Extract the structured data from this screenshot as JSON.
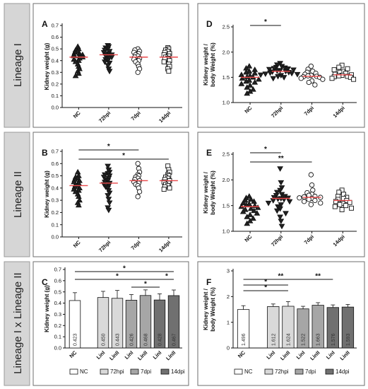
{
  "rows": [
    {
      "label": "Lineage I"
    },
    {
      "label": "Lineage II"
    },
    {
      "label": "Lineage I x Lineage II"
    }
  ],
  "colors": {
    "median": "#e8484a",
    "nc": "#ffffff",
    "72hpi": "#d9d9d9",
    "7dpi": "#a6a6a6",
    "14dpi": "#707070"
  },
  "chart_data": [
    {
      "panel": "A",
      "type": "scatter",
      "ylabel": "Kidney weight (g)",
      "ylim": [
        0.0,
        0.7
      ],
      "yticks": [
        "0.0",
        "0.1",
        "0.2",
        "0.3",
        "0.4",
        "0.5",
        "0.6",
        "0.7"
      ],
      "categories": [
        "NC",
        "72hpi",
        "7dpi",
        "14dpi"
      ],
      "markers": [
        "triangle-up",
        "triangle-down",
        "circle",
        "square"
      ],
      "groups": [
        {
          "name": "NC",
          "median": 0.43,
          "values": [
            0.52,
            0.5,
            0.49,
            0.48,
            0.47,
            0.46,
            0.45,
            0.45,
            0.44,
            0.44,
            0.43,
            0.42,
            0.41,
            0.4,
            0.39,
            0.37,
            0.35,
            0.33,
            0.31,
            0.29,
            0.27
          ]
        },
        {
          "name": "72hpi",
          "median": 0.45,
          "values": [
            0.53,
            0.52,
            0.51,
            0.5,
            0.49,
            0.48,
            0.47,
            0.46,
            0.45,
            0.45,
            0.44,
            0.44,
            0.43,
            0.42,
            0.41,
            0.4,
            0.39,
            0.38,
            0.36,
            0.33,
            0.31
          ]
        },
        {
          "name": "7dpi",
          "median": 0.43,
          "values": [
            0.5,
            0.49,
            0.48,
            0.47,
            0.46,
            0.45,
            0.44,
            0.43,
            0.42,
            0.41,
            0.4,
            0.39,
            0.37,
            0.35,
            0.33,
            0.3
          ]
        },
        {
          "name": "14dpi",
          "median": 0.43,
          "values": [
            0.51,
            0.5,
            0.49,
            0.48,
            0.47,
            0.46,
            0.45,
            0.44,
            0.43,
            0.42,
            0.41,
            0.4,
            0.39,
            0.37,
            0.35,
            0.33,
            0.31
          ]
        }
      ],
      "sig": []
    },
    {
      "panel": "D",
      "type": "scatter",
      "ylabel": "Kidney weight / body Weight (%)",
      "ylim": [
        1.0,
        2.5
      ],
      "yticks": [
        "1.0",
        "1.5",
        "2.0",
        "2.5"
      ],
      "categories": [
        "NC",
        "72hpi",
        "7dpi",
        "14dpi"
      ],
      "markers": [
        "triangle-up",
        "triangle-down",
        "circle",
        "square"
      ],
      "groups": [
        {
          "name": "NC",
          "median": 1.5,
          "values": [
            1.72,
            1.68,
            1.65,
            1.62,
            1.6,
            1.58,
            1.55,
            1.53,
            1.51,
            1.5,
            1.48,
            1.46,
            1.44,
            1.42,
            1.4,
            1.37,
            1.34,
            1.3,
            1.26,
            1.22,
            1.18
          ]
        },
        {
          "name": "72hpi",
          "median": 1.62,
          "values": [
            1.78,
            1.75,
            1.72,
            1.7,
            1.69,
            1.68,
            1.67,
            1.66,
            1.65,
            1.64,
            1.63,
            1.62,
            1.61,
            1.6,
            1.59,
            1.58,
            1.57,
            1.56,
            1.55,
            1.54,
            1.52,
            1.5,
            1.48
          ]
        },
        {
          "name": "7dpi",
          "median": 1.52,
          "values": [
            1.72,
            1.66,
            1.62,
            1.6,
            1.58,
            1.56,
            1.54,
            1.53,
            1.52,
            1.51,
            1.5,
            1.48,
            1.46,
            1.43,
            1.4,
            1.35
          ]
        },
        {
          "name": "14dpi",
          "median": 1.55,
          "values": [
            1.74,
            1.7,
            1.67,
            1.65,
            1.62,
            1.6,
            1.58,
            1.56,
            1.55,
            1.54,
            1.53,
            1.52,
            1.51,
            1.5,
            1.48,
            1.46
          ]
        }
      ],
      "sig": [
        {
          "from": 0,
          "to": 1,
          "label": "*"
        }
      ]
    },
    {
      "panel": "B",
      "type": "scatter",
      "ylabel": "Kidney weight (g)",
      "ylim": [
        0.0,
        0.7
      ],
      "yticks": [
        "0.0",
        "0.1",
        "0.2",
        "0.3",
        "0.4",
        "0.5",
        "0.6",
        "0.7"
      ],
      "categories": [
        "NC",
        "72hpi",
        "7dpi",
        "14dpi"
      ],
      "markers": [
        "triangle-up",
        "triangle-down",
        "circle",
        "square"
      ],
      "groups": [
        {
          "name": "NC",
          "median": 0.42,
          "values": [
            0.53,
            0.5,
            0.49,
            0.48,
            0.47,
            0.46,
            0.45,
            0.44,
            0.43,
            0.42,
            0.41,
            0.4,
            0.39,
            0.38,
            0.37,
            0.35,
            0.33,
            0.3,
            0.28,
            0.26
          ]
        },
        {
          "name": "72hpi",
          "median": 0.44,
          "values": [
            0.58,
            0.55,
            0.53,
            0.52,
            0.51,
            0.5,
            0.49,
            0.48,
            0.47,
            0.46,
            0.45,
            0.44,
            0.43,
            0.42,
            0.41,
            0.4,
            0.38,
            0.36,
            0.34,
            0.31,
            0.28,
            0.24,
            0.22
          ]
        },
        {
          "name": "7dpi",
          "median": 0.46,
          "values": [
            0.6,
            0.56,
            0.53,
            0.51,
            0.5,
            0.49,
            0.48,
            0.47,
            0.46,
            0.45,
            0.44,
            0.43,
            0.42,
            0.4,
            0.37,
            0.33
          ]
        },
        {
          "name": "14dpi",
          "median": 0.46,
          "values": [
            0.58,
            0.55,
            0.53,
            0.51,
            0.5,
            0.49,
            0.48,
            0.47,
            0.46,
            0.45,
            0.44,
            0.43,
            0.42,
            0.41,
            0.4,
            0.39
          ]
        }
      ],
      "sig": [
        {
          "from": 0,
          "to": 2,
          "label": "*"
        },
        {
          "from": 0,
          "to": 3,
          "label": "*"
        }
      ]
    },
    {
      "panel": "E",
      "type": "scatter",
      "ylabel": "Kidney weight / body Weight (%)",
      "ylim": [
        1.0,
        2.5
      ],
      "yticks": [
        "1.0",
        "1.5",
        "2.0",
        "2.5"
      ],
      "categories": [
        "NC",
        "72hpi",
        "7dpi",
        "14dpi"
      ],
      "markers": [
        "triangle-up",
        "triangle-down",
        "circle",
        "square"
      ],
      "groups": [
        {
          "name": "NC",
          "median": 1.48,
          "values": [
            1.68,
            1.65,
            1.62,
            1.6,
            1.58,
            1.55,
            1.53,
            1.51,
            1.5,
            1.48,
            1.46,
            1.44,
            1.42,
            1.4,
            1.38,
            1.35,
            1.32,
            1.28,
            1.25,
            1.2,
            1.15
          ]
        },
        {
          "name": "72hpi",
          "median": 1.64,
          "values": [
            2.22,
            1.95,
            1.85,
            1.8,
            1.76,
            1.72,
            1.7,
            1.68,
            1.66,
            1.65,
            1.64,
            1.63,
            1.62,
            1.6,
            1.58,
            1.55,
            1.52,
            1.48,
            1.44,
            1.4,
            1.35,
            1.28,
            1.2,
            1.1
          ]
        },
        {
          "name": "7dpi",
          "median": 1.66,
          "values": [
            2.1,
            1.9,
            1.8,
            1.75,
            1.72,
            1.7,
            1.68,
            1.67,
            1.66,
            1.65,
            1.64,
            1.62,
            1.6,
            1.58,
            1.55,
            1.52
          ]
        },
        {
          "name": "14dpi",
          "median": 1.6,
          "values": [
            1.8,
            1.76,
            1.72,
            1.68,
            1.66,
            1.64,
            1.62,
            1.6,
            1.58,
            1.56,
            1.54,
            1.52,
            1.5,
            1.48,
            1.45,
            1.42
          ]
        }
      ],
      "sig": [
        {
          "from": 0,
          "to": 1,
          "label": "*"
        },
        {
          "from": 0,
          "to": 2,
          "label": "**"
        }
      ]
    },
    {
      "panel": "C",
      "type": "bar",
      "ylabel": "Kidney weight (g)",
      "ylim": [
        0.0,
        0.7
      ],
      "yticks": [
        "0.0",
        "0.1",
        "0.2",
        "0.3",
        "0.4",
        "0.5",
        "0.6",
        "0.7"
      ],
      "bars": [
        {
          "label": "NC",
          "value": 0.423,
          "err": 0.07,
          "group": "nc",
          "slot": 0,
          "text": "0.423"
        },
        {
          "label": "LinI",
          "value": 0.45,
          "err": 0.055,
          "group": "72hpi",
          "slot": 2,
          "text": "0.450"
        },
        {
          "label": "LinII",
          "value": 0.443,
          "err": 0.07,
          "group": "72hpi",
          "slot": 3,
          "text": "0.443"
        },
        {
          "label": "LinI",
          "value": 0.426,
          "err": 0.05,
          "group": "7dpi",
          "slot": 4,
          "text": "0.426"
        },
        {
          "label": "LinII",
          "value": 0.468,
          "err": 0.05,
          "group": "7dpi",
          "slot": 5,
          "text": "0.468"
        },
        {
          "label": "LinI",
          "value": 0.428,
          "err": 0.055,
          "group": "14dpi",
          "slot": 6,
          "text": "0.428"
        },
        {
          "label": "LinII",
          "value": 0.467,
          "err": 0.05,
          "group": "14dpi",
          "slot": 7,
          "text": "0.467"
        }
      ],
      "sig": [
        {
          "from": 0,
          "to": 7,
          "label": "*"
        },
        {
          "from": 0,
          "to": 5,
          "label": "*"
        },
        {
          "from": 4,
          "to": 5,
          "label": "*"
        },
        {
          "from": 6,
          "to": 7,
          "label": "*"
        }
      ],
      "legend": [
        {
          "key": "nc",
          "label": "NC"
        },
        {
          "key": "72hpi",
          "label": "72hpi"
        },
        {
          "key": "7dpi",
          "label": "7dpi"
        },
        {
          "key": "14dpi",
          "label": "14dpi"
        }
      ]
    },
    {
      "panel": "F",
      "type": "bar",
      "ylabel": "Kidney weight / body Weight (%)",
      "ylim": [
        0.0,
        3.0
      ],
      "yticks": [
        "0",
        "1",
        "2",
        "3"
      ],
      "bars": [
        {
          "label": "NC",
          "value": 1.496,
          "err": 0.15,
          "group": "nc",
          "slot": 0,
          "text": "1.496"
        },
        {
          "label": "LinI",
          "value": 1.612,
          "err": 0.1,
          "group": "72hpi",
          "slot": 2,
          "text": "1.612"
        },
        {
          "label": "LinII",
          "value": 1.624,
          "err": 0.18,
          "group": "72hpi",
          "slot": 3,
          "text": "1.624"
        },
        {
          "label": "LinI",
          "value": 1.522,
          "err": 0.1,
          "group": "7dpi",
          "slot": 4,
          "text": "1.522"
        },
        {
          "label": "LinII",
          "value": 1.663,
          "err": 0.1,
          "group": "7dpi",
          "slot": 5,
          "text": "1.663"
        },
        {
          "label": "LinI",
          "value": 1.576,
          "err": 0.1,
          "group": "14dpi",
          "slot": 6,
          "text": "1.576"
        },
        {
          "label": "LinII",
          "value": 1.593,
          "err": 0.1,
          "group": "14dpi",
          "slot": 7,
          "text": "1.593"
        }
      ],
      "sig": [
        {
          "from": 0,
          "to": 4,
          "label": "**"
        },
        {
          "from": 0,
          "to": 2,
          "label": "*"
        },
        {
          "from": 0,
          "to": 2,
          "label": "*"
        },
        {
          "from": 4,
          "to": 5,
          "label": "**"
        }
      ],
      "legend": [
        {
          "key": "nc",
          "label": "NC"
        },
        {
          "key": "72hpi",
          "label": "72hpi"
        },
        {
          "key": "7dpi",
          "label": "7dpi"
        },
        {
          "key": "14dpi",
          "label": "14dpi"
        }
      ]
    }
  ]
}
